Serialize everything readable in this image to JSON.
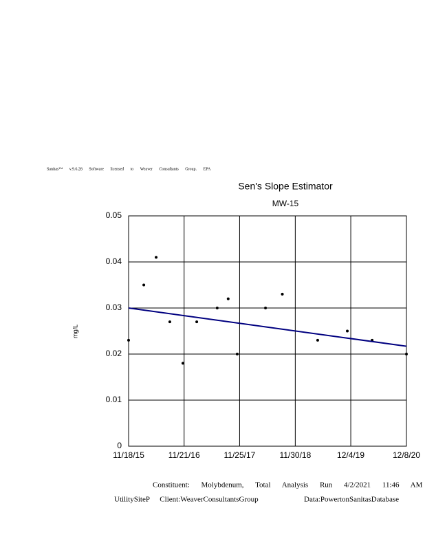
{
  "header": {
    "license": "Sanitas™ v.9.6.28 Software licensed to Weaver Consultants Group. EPA"
  },
  "chart_data": {
    "type": "scatter",
    "title": "Sen's Slope Estimator",
    "subtitle": "MW-15",
    "y_label": "mg/L",
    "x": [
      "2015-11-18",
      "2016-02-27",
      "2016-05-19",
      "2016-08-18",
      "2016-11-13",
      "2017-02-13",
      "2017-06-29",
      "2017-09-10",
      "2017-11-09",
      "2018-05-16",
      "2018-09-05",
      "2019-04-28",
      "2019-11-11",
      "2020-04-24",
      "2020-12-08"
    ],
    "values": [
      0.023,
      0.035,
      0.041,
      0.027,
      0.018,
      0.027,
      0.03,
      0.032,
      0.02,
      0.03,
      0.033,
      0.023,
      0.025,
      0.023,
      0.02
    ],
    "color": "#000000",
    "trend_line": {
      "color": "#000080",
      "x": [
        "2015-11-18",
        "2020-12-08"
      ],
      "values": [
        0.03,
        0.0217
      ]
    },
    "xlim": [
      "2015-11-18",
      "2020-12-08"
    ],
    "xticks": [
      {
        "value": "2015-11-18",
        "label": "11/18/15"
      },
      {
        "value": "2016-11-21",
        "label": "11/21/16"
      },
      {
        "value": "2017-11-25",
        "label": "11/25/17"
      },
      {
        "value": "2018-11-30",
        "label": "11/30/18"
      },
      {
        "value": "2019-12-04",
        "label": "12/4/19"
      },
      {
        "value": "2020-12-08",
        "label": "12/8/20"
      }
    ],
    "ylim": [
      0,
      0.05
    ],
    "yticks": [
      0,
      0.01,
      0.02,
      0.03,
      0.04,
      0.05
    ],
    "grid": true
  },
  "footer": {
    "line1": "Constituent: Molybdenum, Total Analysis Run 4/2/2021 11:46 AM",
    "line2_left": "UtilitySiteP Client:WeaverConsultantsGroup",
    "line2_right": "Data:PowertonSanitasDatabase"
  }
}
